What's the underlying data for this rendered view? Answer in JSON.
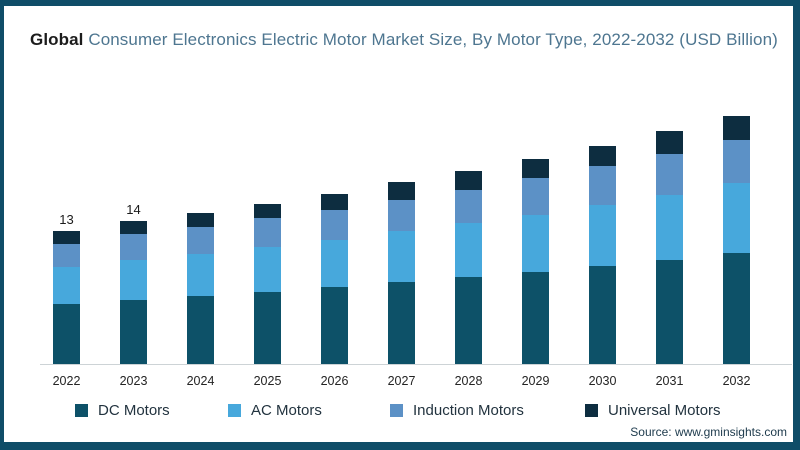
{
  "title": {
    "prefix": "Global",
    "rest": " Consumer Electronics Electric Motor Market Size, By Motor Type, 2022-2032 (USD Billion)"
  },
  "source": {
    "label": "Source: www.gminsights.com"
  },
  "colors": {
    "frame": "#0f4d68",
    "dc_motors": "#0d5168",
    "ac_motors": "#47a8dc",
    "induction_motors": "#5c91c6",
    "universal_motors": "#0d2d40",
    "axis_line": "#cdd3d6"
  },
  "chart_data": {
    "type": "bar",
    "stacked": true,
    "title": "Global Consumer Electronics Electric Motor Market Size, By Motor Type, 2022-2032 (USD Billion)",
    "units": "USD Billion",
    "grid": false,
    "legend_position": "bottom",
    "categories": [
      "2022",
      "2023",
      "2024",
      "2025",
      "2026",
      "2027",
      "2028",
      "2029",
      "2030",
      "2031",
      "2032"
    ],
    "series": [
      {
        "name": "DC Motors",
        "color": "#0d5168",
        "values": [
          5.9,
          6.3,
          6.7,
          7.1,
          7.5,
          8.0,
          8.5,
          9.0,
          9.6,
          10.2,
          10.9
        ]
      },
      {
        "name": "AC Motors",
        "color": "#47a8dc",
        "values": [
          3.6,
          3.9,
          4.1,
          4.4,
          4.7,
          5.0,
          5.3,
          5.6,
          6.0,
          6.4,
          6.8
        ]
      },
      {
        "name": "Induction Motors",
        "color": "#5c91c6",
        "values": [
          2.3,
          2.5,
          2.6,
          2.8,
          2.9,
          3.1,
          3.3,
          3.6,
          3.8,
          4.0,
          4.3
        ]
      },
      {
        "name": "Universal Motors",
        "color": "#0d2d40",
        "values": [
          1.2,
          1.3,
          1.4,
          1.4,
          1.6,
          1.7,
          1.8,
          1.9,
          2.0,
          2.2,
          2.3
        ]
      }
    ],
    "totals": [
      13,
      14,
      14.8,
      15.7,
      16.7,
      17.8,
      18.9,
      20.1,
      21.4,
      22.8,
      24.3
    ],
    "annotations": [
      {
        "category": "2022",
        "text": "13"
      },
      {
        "category": "2023",
        "text": "14"
      }
    ]
  },
  "legend": {
    "items": [
      {
        "label": "DC Motors",
        "color": "#0d5168"
      },
      {
        "label": "AC Motors",
        "color": "#47a8dc"
      },
      {
        "label": "Induction Motors",
        "color": "#5c91c6"
      },
      {
        "label": "Universal Motors",
        "color": "#0d2d40"
      }
    ]
  }
}
